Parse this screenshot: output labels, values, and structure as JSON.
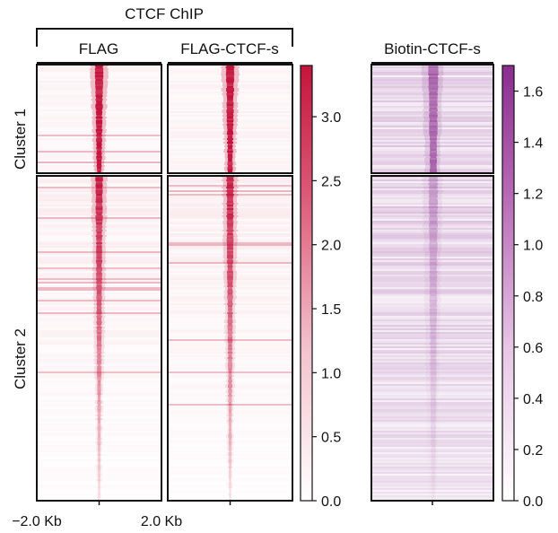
{
  "chart_data": {
    "type": "heatmap",
    "group_title": "CTCF ChIP",
    "row_clusters": [
      "Cluster 1",
      "Cluster 2"
    ],
    "x_axis": {
      "left_label": "−2.0 Kb",
      "right_label": "2.0 Kb"
    },
    "panels": [
      {
        "title": "FLAG",
        "colormap": "red"
      },
      {
        "title": "FLAG-CTCF-s",
        "colormap": "red"
      },
      {
        "title": "Biotin-CTCF-s",
        "colormap": "purple"
      }
    ],
    "colorbars": [
      {
        "colormap": "red",
        "min": 0.0,
        "max": 3.4,
        "tick_values": [
          0.0,
          0.5,
          1.0,
          1.5,
          2.0,
          2.5,
          3.0
        ],
        "tick_labels": [
          "0.0",
          "0.5",
          "1.0",
          "1.5",
          "2.0",
          "2.5",
          "3.0"
        ],
        "color_low": "#ffffff",
        "color_high": "#c4143c"
      },
      {
        "colormap": "purple",
        "min": 0.0,
        "max": 1.7,
        "tick_values": [
          0.0,
          0.2,
          0.4,
          0.6,
          0.8,
          1.0,
          1.2,
          1.4,
          1.6
        ],
        "tick_labels": [
          "0.0",
          "0.2",
          "0.4",
          "0.6",
          "0.8",
          "1.0",
          "1.2",
          "1.4",
          "1.6"
        ],
        "color_low": "#ffffff",
        "color_high": "#8a2d8f"
      }
    ]
  }
}
